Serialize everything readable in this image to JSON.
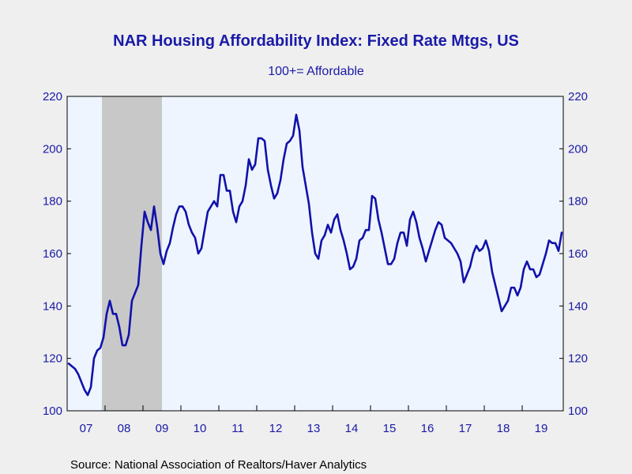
{
  "chart_data": {
    "type": "line",
    "title": "NAR Housing Affordability Index: Fixed Rate Mtgs, US",
    "subtitle": "100+= Affordable",
    "source": "Source:  National Association of Realtors/Haver Analytics",
    "xlabel": "",
    "ylabel": "",
    "ylim": [
      100,
      220
    ],
    "y_ticks": [
      100,
      120,
      140,
      160,
      180,
      200,
      220
    ],
    "y_tick_labels_left": [
      "100",
      "120",
      "140",
      "160",
      "180",
      "200",
      "220"
    ],
    "y_tick_labels_right": [
      "100",
      "120",
      "140",
      "160",
      "180",
      "200",
      "220"
    ],
    "x_start": "2007-01",
    "x_tick_labels": [
      "07",
      "08",
      "09",
      "10",
      "11",
      "12",
      "13",
      "14",
      "15",
      "16",
      "17",
      "18",
      "19"
    ],
    "grid": false,
    "legend": "none",
    "recession_shading": {
      "start": "2007-12",
      "end": "2009-06"
    },
    "series": [
      {
        "values": [
          118,
          117,
          116,
          114,
          111,
          108,
          106,
          109,
          120,
          123,
          124,
          128,
          137,
          142,
          137,
          137,
          132,
          125,
          125,
          129,
          142,
          145,
          148,
          163,
          176,
          172,
          169,
          178,
          170,
          160,
          156,
          161,
          164,
          170,
          175,
          178,
          178,
          176,
          171,
          168,
          166,
          160,
          162,
          169,
          176,
          178,
          180,
          178,
          190,
          190,
          184,
          184,
          176,
          172,
          178,
          180,
          186,
          196,
          192,
          194,
          204,
          204,
          203,
          192,
          186,
          181,
          183,
          188,
          196,
          202,
          203,
          205,
          213,
          207,
          193,
          186,
          179,
          168,
          160,
          158,
          165,
          167,
          171,
          168,
          173,
          175,
          169,
          165,
          160,
          154,
          155,
          158,
          165,
          166,
          169,
          169,
          182,
          181,
          173,
          168,
          162,
          156,
          156,
          158,
          164,
          168,
          168,
          163,
          173,
          176,
          172,
          166,
          162,
          157,
          161,
          165,
          169,
          172,
          171,
          166,
          165,
          164,
          162,
          160,
          157,
          149,
          152,
          155,
          160,
          163,
          161,
          162,
          165,
          161,
          153,
          148,
          143,
          138,
          140,
          142,
          147,
          147,
          144,
          147,
          154,
          157,
          154,
          154,
          151,
          152,
          156,
          160,
          165,
          164,
          164,
          161,
          168
        ],
        "color": "#1111aa"
      }
    ],
    "colors": {
      "background": "#efefef",
      "plot_background": "#eef5ff",
      "recession": "#c8c8c8",
      "text": "#1a1aa8",
      "axis": "#000000"
    }
  }
}
